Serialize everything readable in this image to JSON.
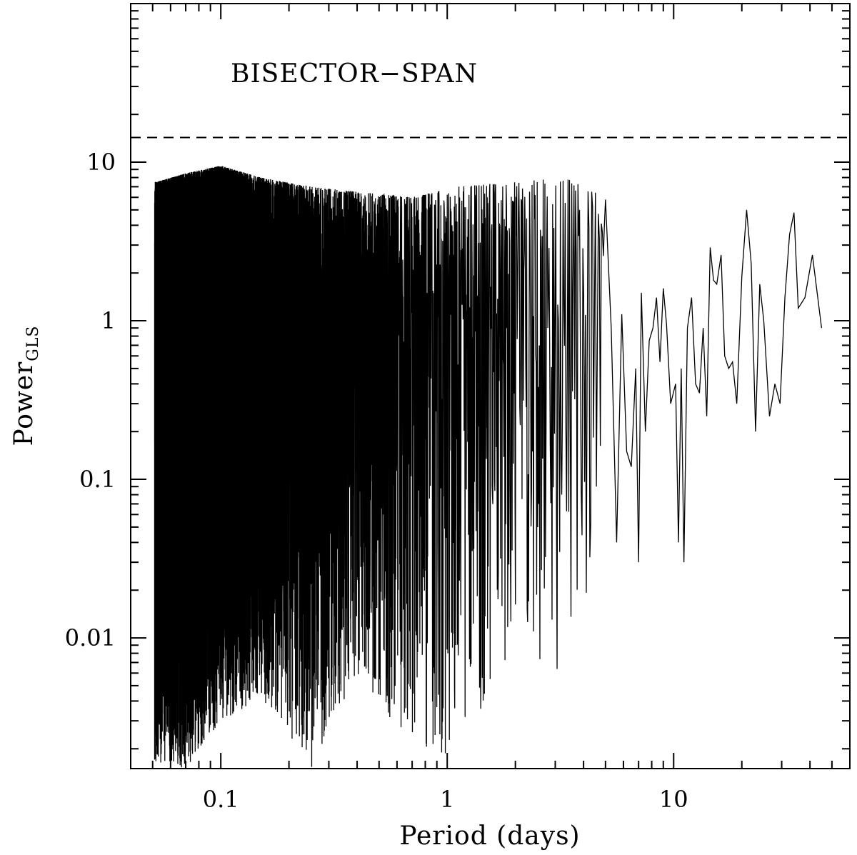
{
  "chart_data": {
    "type": "line",
    "title": "",
    "panel_label": "BISECTOR−SPAN",
    "xlabel": "Period (days)",
    "ylabel": {
      "main": "Power",
      "subscript": "GLS"
    },
    "x_scale": "log",
    "y_scale": "log",
    "xlim": [
      0.04,
      60
    ],
    "ylim": [
      0.0015,
      100
    ],
    "x_tick_labels": [
      {
        "value": 0.1,
        "label": "0.1"
      },
      {
        "value": 1,
        "label": "1"
      },
      {
        "value": 10,
        "label": "10"
      }
    ],
    "y_tick_labels": [
      {
        "value": 0.01,
        "label": "0.01"
      },
      {
        "value": 0.1,
        "label": "0.1"
      },
      {
        "value": 1,
        "label": "1"
      },
      {
        "value": 10,
        "label": "10"
      }
    ],
    "threshold": {
      "y": 14.3,
      "style": "dashed"
    },
    "grid": false,
    "legend": "none",
    "series": [
      {
        "x_range": [
          0.051,
          45
        ],
        "line_color": "#000000",
        "dense_region_end_period": 5,
        "envelope": [
          {
            "period": 0.052,
            "upper": 7.5,
            "lower": 0.0016
          },
          {
            "period": 0.07,
            "upper": 8.5,
            "lower": 0.0015
          },
          {
            "period": 0.1,
            "upper": 9.5,
            "lower": 0.003
          },
          {
            "period": 0.15,
            "upper": 8.0,
            "lower": 0.004
          },
          {
            "period": 0.25,
            "upper": 7.0,
            "lower": 0.0015
          },
          {
            "period": 0.4,
            "upper": 6.5,
            "lower": 0.006
          },
          {
            "period": 0.7,
            "upper": 6.0,
            "lower": 0.002
          },
          {
            "period": 1.1,
            "upper": 7.0,
            "lower": 0.0015
          },
          {
            "period": 2.0,
            "upper": 7.5,
            "lower": 0.01
          },
          {
            "period": 3.3,
            "upper": 8.0,
            "lower": 0.005
          },
          {
            "period": 5.0,
            "upper": 6.0,
            "lower": 0.05
          }
        ],
        "sparse_points": [
          [
            5.3,
            0.9
          ],
          [
            5.6,
            0.04
          ],
          [
            5.9,
            1.1
          ],
          [
            6.2,
            0.15
          ],
          [
            6.5,
            0.12
          ],
          [
            6.8,
            0.5
          ],
          [
            7.0,
            0.03
          ],
          [
            7.2,
            1.5
          ],
          [
            7.5,
            0.2
          ],
          [
            7.8,
            0.75
          ],
          [
            8.1,
            0.9
          ],
          [
            8.4,
            1.4
          ],
          [
            8.7,
            0.55
          ],
          [
            9.0,
            1.6
          ],
          [
            9.3,
            0.95
          ],
          [
            9.7,
            0.3
          ],
          [
            10.2,
            0.4
          ],
          [
            10.5,
            0.04
          ],
          [
            10.8,
            0.5
          ],
          [
            11.1,
            0.03
          ],
          [
            11.5,
            0.9
          ],
          [
            12.0,
            1.4
          ],
          [
            12.5,
            0.4
          ],
          [
            13.0,
            0.35
          ],
          [
            13.5,
            0.9
          ],
          [
            14.0,
            0.25
          ],
          [
            14.5,
            2.9
          ],
          [
            15.0,
            1.8
          ],
          [
            15.5,
            1.7
          ],
          [
            16.2,
            2.6
          ],
          [
            16.8,
            0.6
          ],
          [
            17.5,
            0.5
          ],
          [
            18.2,
            0.55
          ],
          [
            19.0,
            0.3
          ],
          [
            20.0,
            1.9
          ],
          [
            21.0,
            5.0
          ],
          [
            22.0,
            2.3
          ],
          [
            23.0,
            0.2
          ],
          [
            24.0,
            1.7
          ],
          [
            25.0,
            1.0
          ],
          [
            26.5,
            0.25
          ],
          [
            28.0,
            0.4
          ],
          [
            29.5,
            0.3
          ],
          [
            31.0,
            1.4
          ],
          [
            32.5,
            3.5
          ],
          [
            34.0,
            4.8
          ],
          [
            35.5,
            1.2
          ],
          [
            38.0,
            1.4
          ],
          [
            41.0,
            2.6
          ],
          [
            45.0,
            0.9
          ]
        ]
      }
    ]
  }
}
